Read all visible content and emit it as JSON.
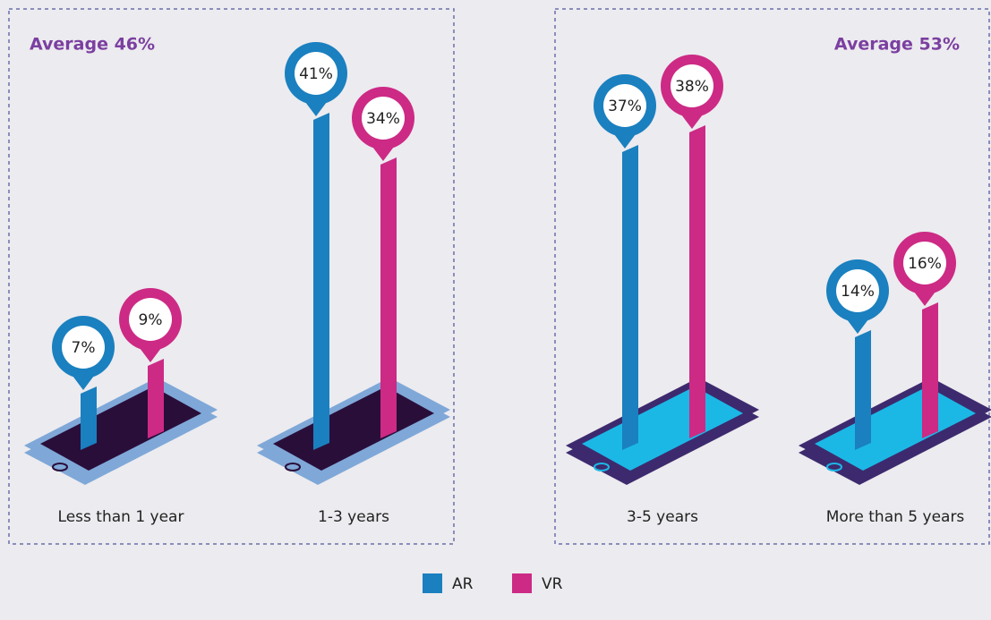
{
  "chart_data": {
    "type": "bar",
    "annotations": [
      "Average 46%",
      "Average 53%"
    ],
    "categories": [
      "Less than 1 year",
      "1-3 years",
      "3-5 years",
      "More than 5 years"
    ],
    "series": [
      {
        "name": "AR",
        "color": "#1a80bf",
        "values": [
          7,
          41,
          37,
          14
        ],
        "value_labels": [
          "7%",
          "41%",
          "37%",
          "14%"
        ]
      },
      {
        "name": "VR",
        "color": "#cc2a85",
        "values": [
          9,
          34,
          38,
          16
        ],
        "value_labels": [
          "9%",
          "34%",
          "38%",
          "16%"
        ]
      }
    ]
  }
}
